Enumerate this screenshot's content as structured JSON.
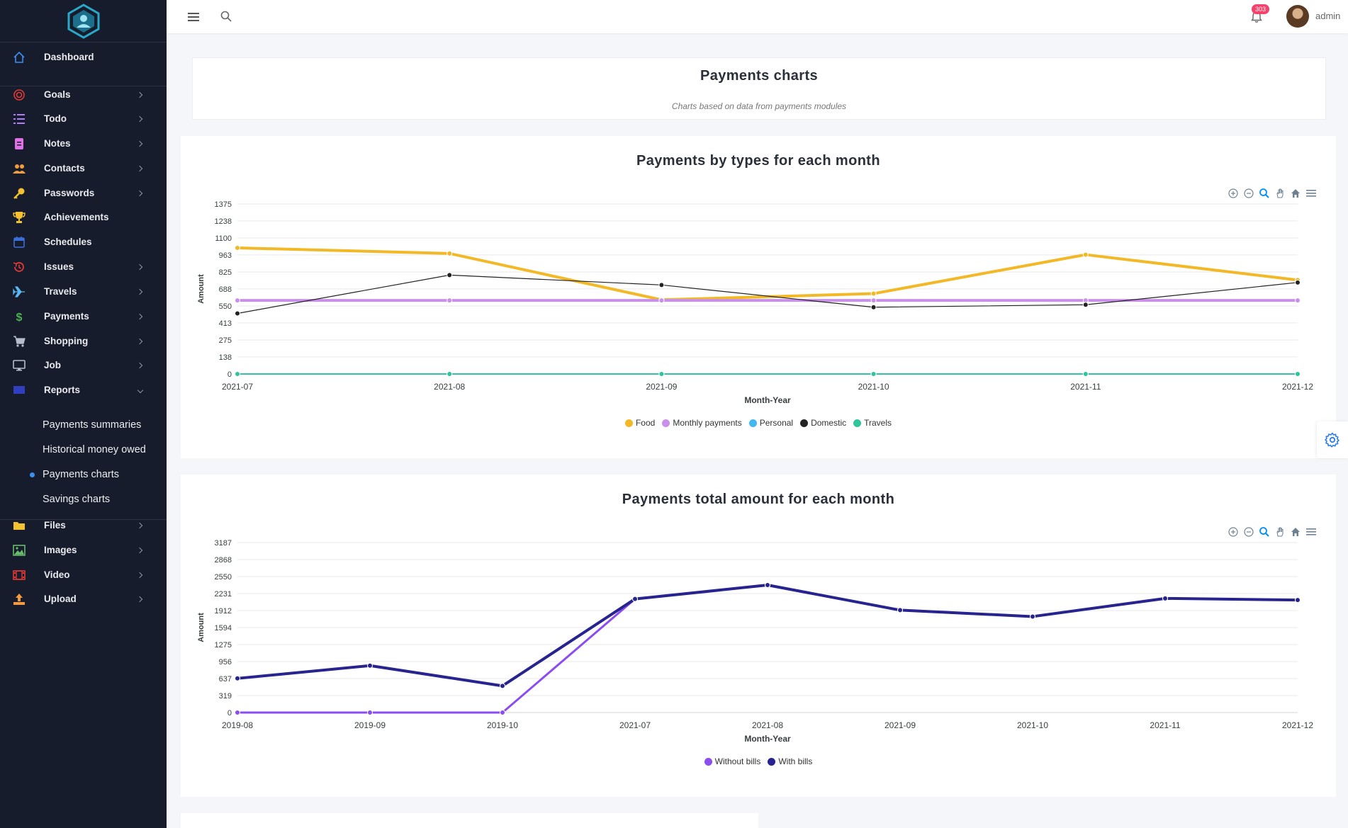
{
  "sidebar": {
    "items": [
      {
        "label": "Dashboard",
        "icon": "home-icon",
        "color": "#3d8ef0"
      },
      {
        "label": "Goals",
        "icon": "target-icon",
        "color": "#e53935"
      },
      {
        "label": "Todo",
        "icon": "checklist-icon",
        "color": "#b07cf7"
      },
      {
        "label": "Notes",
        "icon": "note-icon",
        "color": "#e16fe8"
      },
      {
        "label": "Contacts",
        "icon": "users-icon",
        "color": "#f39c3d"
      },
      {
        "label": "Passwords",
        "icon": "key-icon",
        "color": "#f2c230"
      },
      {
        "label": "Achievements",
        "icon": "trophy-icon",
        "color": "#f2c230"
      },
      {
        "label": "Schedules",
        "icon": "calendar-icon",
        "color": "#3b6fd8"
      },
      {
        "label": "Issues",
        "icon": "history-icon",
        "color": "#e53935"
      },
      {
        "label": "Travels",
        "icon": "plane-icon",
        "color": "#5ab7f0"
      },
      {
        "label": "Payments",
        "icon": "dollar-icon",
        "color": "#4caf50"
      },
      {
        "label": "Shopping",
        "icon": "cart-icon",
        "color": "#b8bccc"
      },
      {
        "label": "Job",
        "icon": "monitor-icon",
        "color": "#b8bccc"
      },
      {
        "label": "Reports",
        "icon": "flag-icon",
        "color": "#2f3fbf"
      },
      {
        "label": "Files",
        "icon": "folder-icon",
        "color": "#f2c230"
      },
      {
        "label": "Images",
        "icon": "image-icon",
        "color": "#66bb6a"
      },
      {
        "label": "Video",
        "icon": "film-icon",
        "color": "#e53935"
      },
      {
        "label": "Upload",
        "icon": "upload-icon",
        "color": "#f39c3d"
      }
    ],
    "reports_sub": [
      {
        "label": "Payments summaries"
      },
      {
        "label": "Historical money owed"
      },
      {
        "label": "Payments charts"
      },
      {
        "label": "Savings charts"
      }
    ]
  },
  "topbar": {
    "notification_count": "303",
    "user_name": "admin"
  },
  "header": {
    "title": "Payments charts",
    "subtitle": "Charts based on data from payments modules"
  },
  "chart_data": [
    {
      "type": "line",
      "title": "Payments by types for each month",
      "xlabel": "Month-Year",
      "ylabel": "Amount",
      "categories": [
        "2021-07",
        "2021-08",
        "2021-09",
        "2021-10",
        "2021-11",
        "2021-12"
      ],
      "y_ticks": [
        "0",
        "138",
        "275",
        "413",
        "550",
        "688",
        "825",
        "963",
        "1100",
        "1238",
        "1375"
      ],
      "ylim": [
        0,
        1375
      ],
      "grid": true,
      "legend_position": "bottom",
      "series": [
        {
          "name": "Food",
          "color": "#f2b825",
          "values": [
            1020,
            975,
            600,
            650,
            965,
            760
          ]
        },
        {
          "name": "Monthly payments",
          "color": "#c890e8",
          "values": [
            595,
            595,
            595,
            595,
            595,
            595
          ]
        },
        {
          "name": "Personal",
          "color": "#42b8f0",
          "values": [
            0,
            0,
            0,
            0,
            0,
            0
          ]
        },
        {
          "name": "Domestic",
          "color": "#222222",
          "values": [
            490,
            800,
            720,
            540,
            560,
            740
          ]
        },
        {
          "name": "Travels",
          "color": "#2fc49a",
          "values": [
            0,
            0,
            0,
            0,
            0,
            0
          ]
        }
      ]
    },
    {
      "type": "line",
      "title": "Payments total amount for each month",
      "xlabel": "Month-Year",
      "ylabel": "Amount",
      "categories": [
        "2019-08",
        "2019-09",
        "2019-10",
        "2021-07",
        "2021-08",
        "2021-09",
        "2021-10",
        "2021-11",
        "2021-12"
      ],
      "y_ticks": [
        "0",
        "319",
        "637",
        "956",
        "1275",
        "1594",
        "1912",
        "2231",
        "2550",
        "2868",
        "3187"
      ],
      "ylim": [
        0,
        3187
      ],
      "grid": true,
      "legend_position": "bottom",
      "series": [
        {
          "name": "Without bills",
          "color": "#8b4cf0",
          "values": [
            0,
            0,
            0,
            2130,
            2390,
            1920,
            1800,
            2140,
            2110
          ]
        },
        {
          "name": "With bills",
          "color": "#27238f",
          "values": [
            640,
            880,
            500,
            2130,
            2390,
            1920,
            1800,
            2140,
            2110
          ]
        }
      ]
    }
  ]
}
